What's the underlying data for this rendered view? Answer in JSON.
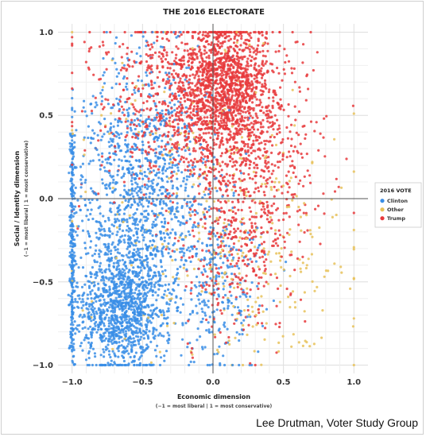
{
  "chart_data": {
    "type": "scatter",
    "title": "THE 2016 ELECTORATE",
    "xlabel": "Economic dimension",
    "xlabel_note": "(−1 = most liberal | 1 = most conservative)",
    "ylabel": "Social / Identity dimension",
    "ylabel_note": "(−1 = most liberal | 1 = most conservative)",
    "xlim": [
      -1.1,
      1.1
    ],
    "ylim": [
      -1.05,
      1.05
    ],
    "xticks": [
      {
        "value": -1.0,
        "label": "−1.0"
      },
      {
        "value": -0.5,
        "label": "−0.5"
      },
      {
        "value": 0.0,
        "label": "0.0"
      },
      {
        "value": 0.5,
        "label": "0.5"
      },
      {
        "value": 1.0,
        "label": "1.0"
      }
    ],
    "yticks": [
      {
        "value": 1.0,
        "label": "1.0"
      },
      {
        "value": 0.5,
        "label": "0.5"
      },
      {
        "value": 0.0,
        "label": "0.0"
      },
      {
        "value": -0.5,
        "label": "−0.5"
      },
      {
        "value": -1.0,
        "label": "−1.0"
      }
    ],
    "grid": true,
    "legend": {
      "title": "2016 VOTE",
      "placement": "right"
    },
    "series": [
      {
        "name": "Clinton",
        "color": "#3a8ee6",
        "clusters": [
          {
            "center": [
              -0.65,
              -0.7
            ],
            "spread": [
              0.16,
              0.17
            ],
            "weight": 0.38
          },
          {
            "center": [
              -0.55,
              -0.2
            ],
            "spread": [
              0.25,
              0.3
            ],
            "weight": 0.35
          },
          {
            "center": [
              -0.5,
              0.35
            ],
            "spread": [
              0.25,
              0.3
            ],
            "weight": 0.17
          },
          {
            "center": [
              0.05,
              -0.5
            ],
            "spread": [
              0.17,
              0.28
            ],
            "weight": 0.1
          }
        ],
        "band": {
          "x": -1.0,
          "ymin": -1.0,
          "ymax": 0.4,
          "fraction": 0.08
        }
      },
      {
        "name": "Other",
        "color": "#e8c25a",
        "clusters": [
          {
            "center": [
              -0.1,
              0.05
            ],
            "spread": [
              0.45,
              0.5
            ],
            "weight": 0.6
          },
          {
            "center": [
              0.4,
              -0.4
            ],
            "spread": [
              0.3,
              0.35
            ],
            "weight": 0.4
          }
        ]
      },
      {
        "name": "Trump",
        "color": "#e8393c",
        "clusters": [
          {
            "center": [
              0.08,
              0.7
            ],
            "spread": [
              0.16,
              0.18
            ],
            "weight": 0.38
          },
          {
            "center": [
              -0.2,
              0.6
            ],
            "spread": [
              0.32,
              0.25
            ],
            "weight": 0.3
          },
          {
            "center": [
              0.25,
              0.2
            ],
            "spread": [
              0.25,
              0.3
            ],
            "weight": 0.22
          },
          {
            "center": [
              0.15,
              -0.3
            ],
            "spread": [
              0.2,
              0.3
            ],
            "weight": 0.1
          }
        ]
      }
    ]
  },
  "credit": "Lee Drutman, Voter Study Group"
}
